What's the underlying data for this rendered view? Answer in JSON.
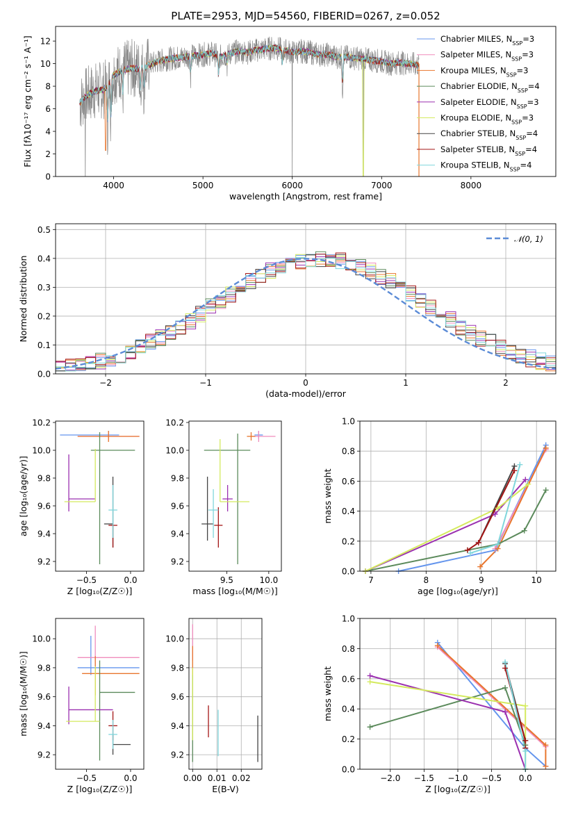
{
  "series": [
    {
      "name": "Chabrier MILES",
      "nssp": "3",
      "color": "#6495ed"
    },
    {
      "name": "Salpeter MILES",
      "nssp": "3",
      "color": "#f08cbc"
    },
    {
      "name": "Kroupa MILES",
      "nssp": "3",
      "color": "#e8762d"
    },
    {
      "name": "Chabrier ELODIE",
      "nssp": "4",
      "color": "#5b8a5b"
    },
    {
      "name": "Salpeter ELODIE",
      "nssp": "3",
      "color": "#9b30b0"
    },
    {
      "name": "Kroupa ELODIE",
      "nssp": "3",
      "color": "#d4ea5e"
    },
    {
      "name": "Chabrier STELIB",
      "nssp": "4",
      "color": "#444444"
    },
    {
      "name": "Salpeter STELIB",
      "nssp": "4",
      "color": "#a31515"
    },
    {
      "name": "Kroupa STELIB",
      "nssp": "4",
      "color": "#7fd6dc"
    }
  ],
  "chart_data": [
    {
      "type": "line",
      "title": "PLATE=2953, MJD=54560, FIBERID=0267, z=0.052",
      "xlabel": "wavelength [Angstrom, rest frame]",
      "ylabel": "Flux [fλ10⁻¹⁷ erg cm⁻² s⁻¹ A⁻¹]",
      "xlim": [
        3350,
        8950
      ],
      "ylim": [
        0,
        13.3
      ],
      "xticks": [
        4000,
        5000,
        6000,
        7000,
        8000
      ],
      "yticks": [
        0,
        2,
        4,
        6,
        8,
        10,
        12
      ],
      "grid": false,
      "legend": "top-right",
      "continuum": {
        "x": [
          3620,
          3700,
          3800,
          3900,
          4000,
          4100,
          4200,
          4300,
          4400,
          4500,
          4600,
          4700,
          4800,
          4900,
          5000,
          5100,
          5200,
          5300,
          5400,
          5500,
          5600,
          5700,
          5800,
          5900,
          6000,
          6100,
          6200,
          6300,
          6400,
          6500,
          6600,
          6700,
          6800,
          6900,
          7000,
          7100,
          7200,
          7300,
          7400
        ],
        "y": [
          6.5,
          7.2,
          7.6,
          7.7,
          9.0,
          9.4,
          9.6,
          9.5,
          9.9,
          10.2,
          10.4,
          10.5,
          10.6,
          10.7,
          10.8,
          10.9,
          10.6,
          10.9,
          11.1,
          11.0,
          11.2,
          11.3,
          11.4,
          11.2,
          11.0,
          11.1,
          11.0,
          10.8,
          10.8,
          10.6,
          10.6,
          10.5,
          10.4,
          10.3,
          10.2,
          10.0,
          10.1,
          10.0,
          9.9
        ]
      }
    },
    {
      "type": "histogram",
      "xlabel": "(data-model)/error",
      "ylabel": "Normed distribution",
      "xlim": [
        -2.5,
        2.5
      ],
      "ylim": [
        0,
        0.52
      ],
      "xticks": [
        -2,
        -1,
        0,
        1,
        2
      ],
      "yticks": [
        0.0,
        0.1,
        0.2,
        0.3,
        0.4,
        0.5
      ],
      "grid": true,
      "legend": "top-right",
      "reference_label": "𝒩(0, 1)",
      "bin_width": 0.1
    },
    {
      "type": "errorbar",
      "xlabel": "Z [log₁₀(Z/Z☉)]",
      "ylabel": "age  [log₁₀(age/yr)]",
      "xlim": [
        -0.85,
        0.15
      ],
      "ylim": [
        9.13,
        10.21
      ],
      "xticks": [
        -0.5,
        0.0
      ],
      "yticks": [
        9.2,
        9.4,
        9.6,
        9.8,
        10.0,
        10.2
      ],
      "grid": false,
      "points": [
        {
          "series": "Chabrier MILES",
          "x": -0.25,
          "xerr": [
            0.55,
            0.12
          ],
          "y": 10.11,
          "yerr": [
            0.03,
            0.03
          ]
        },
        {
          "series": "Salpeter MILES",
          "x": -0.25,
          "xerr": [
            0.35,
            0.35
          ],
          "y": 10.1,
          "yerr": [
            0.03,
            0.03
          ]
        },
        {
          "series": "Kroupa MILES",
          "x": -0.25,
          "xerr": [
            0.35,
            0.35
          ],
          "y": 10.1,
          "yerr": [
            0.04,
            0.04
          ]
        },
        {
          "series": "Chabrier ELODIE",
          "x": -0.35,
          "xerr": [
            0.1,
            0.4
          ],
          "y": 10.0,
          "yerr": [
            0.82,
            0.13
          ]
        },
        {
          "series": "Salpeter ELODIE",
          "x": -0.7,
          "xerr": [
            0.0,
            0.3
          ],
          "y": 9.65,
          "yerr": [
            0.09,
            0.32
          ]
        },
        {
          "series": "Kroupa ELODIE",
          "x": -0.4,
          "xerr": [
            0.35,
            0.0
          ],
          "y": 9.63,
          "yerr": [
            0.0,
            0.38
          ]
        },
        {
          "series": "Chabrier STELIB",
          "x": -0.2,
          "xerr": [
            0.1,
            0.0
          ],
          "y": 9.47,
          "yerr": [
            0.17,
            0.34
          ]
        },
        {
          "series": "Salpeter STELIB",
          "x": -0.2,
          "xerr": [
            0.05,
            0.05
          ],
          "y": 9.46,
          "yerr": [
            0.16,
            0.0
          ]
        },
        {
          "series": "Kroupa STELIB",
          "x": -0.2,
          "xerr": [
            0.05,
            0.05
          ],
          "y": 9.57,
          "yerr": [
            0.2,
            0.18
          ]
        }
      ]
    },
    {
      "type": "errorbar",
      "xlabel": "mass [log₁₀(M/M☉)]",
      "ylabel": "",
      "xlim": [
        9.05,
        10.15
      ],
      "ylim": [
        9.13,
        10.21
      ],
      "xticks": [
        9.5,
        10.0
      ],
      "yticks": [
        9.2,
        9.4,
        9.6,
        9.8,
        10.0,
        10.2
      ],
      "grid": false,
      "points": [
        {
          "series": "Chabrier MILES",
          "x": 9.88,
          "xerr": [
            0.05,
            0.05
          ],
          "y": 10.11,
          "yerr": [
            0.03,
            0.03
          ]
        },
        {
          "series": "Salpeter MILES",
          "x": 9.88,
          "xerr": [
            0.1,
            0.2
          ],
          "y": 10.1,
          "yerr": [
            0.04,
            0.04
          ]
        },
        {
          "series": "Kroupa MILES",
          "x": 9.79,
          "xerr": [
            0.05,
            0.05
          ],
          "y": 10.1,
          "yerr": [
            0.03,
            0.03
          ]
        },
        {
          "series": "Chabrier ELODIE",
          "x": 9.63,
          "xerr": [
            0.4,
            0.15
          ],
          "y": 10.0,
          "yerr": [
            0.82,
            0.12
          ]
        },
        {
          "series": "Salpeter ELODIE",
          "x": 9.51,
          "xerr": [
            0.06,
            0.06
          ],
          "y": 9.65,
          "yerr": [
            0.09,
            0.1
          ]
        },
        {
          "series": "Kroupa ELODIE",
          "x": 9.42,
          "xerr": [
            0.0,
            0.35
          ],
          "y": 9.63,
          "yerr": [
            0.0,
            0.45
          ]
        },
        {
          "series": "Chabrier STELIB",
          "x": 9.27,
          "xerr": [
            0.07,
            0.07
          ],
          "y": 9.47,
          "yerr": [
            0.12,
            0.34
          ]
        },
        {
          "series": "Salpeter STELIB",
          "x": 9.4,
          "xerr": [
            0.05,
            0.05
          ],
          "y": 9.46,
          "yerr": [
            0.16,
            0.13
          ]
        },
        {
          "series": "Kroupa STELIB",
          "x": 9.34,
          "xerr": [
            0.06,
            0.06
          ],
          "y": 9.57,
          "yerr": [
            0.2,
            0.15
          ]
        }
      ]
    },
    {
      "type": "line",
      "xlabel": "age  [log₁₀(age/yr)]",
      "ylabel": "mass weight",
      "xlim": [
        6.8,
        10.35
      ],
      "ylim": [
        0,
        1.0
      ],
      "xticks": [
        7,
        8,
        9,
        10
      ],
      "yticks": [
        0.0,
        0.2,
        0.4,
        0.6,
        0.8,
        1.0
      ],
      "grid": true,
      "lines": [
        {
          "series": "Chabrier MILES",
          "x": [
            7.5,
            9.25,
            10.17
          ],
          "y": [
            0.0,
            0.14,
            0.84
          ]
        },
        {
          "series": "Salpeter MILES",
          "x": [
            9.25,
            10.17
          ],
          "y": [
            0.15,
            0.81
          ]
        },
        {
          "series": "Kroupa MILES",
          "x": [
            8.98,
            9.3,
            10.17
          ],
          "y": [
            0.03,
            0.15,
            0.82
          ]
        },
        {
          "series": "Chabrier ELODIE",
          "x": [
            6.9,
            8.75,
            9.3,
            9.78,
            10.17
          ],
          "y": [
            0.0,
            0.14,
            0.18,
            0.27,
            0.54
          ]
        },
        {
          "series": "Salpeter ELODIE",
          "x": [
            6.9,
            9.25,
            9.8
          ],
          "y": [
            0.0,
            0.38,
            0.61
          ]
        },
        {
          "series": "Kroupa ELODIE",
          "x": [
            6.9,
            9.3,
            9.85
          ],
          "y": [
            0.0,
            0.42,
            0.58
          ]
        },
        {
          "series": "Chabrier STELIB",
          "x": [
            8.95,
            9.6
          ],
          "y": [
            0.19,
            0.7
          ]
        },
        {
          "series": "Salpeter STELIB",
          "x": [
            8.75,
            8.95,
            9.6
          ],
          "y": [
            0.14,
            0.19,
            0.67
          ]
        },
        {
          "series": "Kroupa STELIB",
          "x": [
            8.8,
            9.3,
            9.7
          ],
          "y": [
            0.12,
            0.18,
            0.71
          ]
        }
      ]
    },
    {
      "type": "errorbar",
      "xlabel": "Z [log₁₀(Z/Z☉)]",
      "ylabel": "mass [log₁₀(M/M☉)]",
      "xlim": [
        -0.85,
        0.15
      ],
      "ylim": [
        9.1,
        10.14
      ],
      "xticks": [
        -0.5,
        0.0
      ],
      "yticks": [
        9.2,
        9.4,
        9.6,
        9.8,
        10.0
      ],
      "grid": false,
      "points": [
        {
          "series": "Chabrier MILES",
          "x": -0.45,
          "xerr": [
            0.15,
            0.55
          ],
          "y": 9.8,
          "yerr": [
            0.05,
            0.22
          ]
        },
        {
          "series": "Salpeter MILES",
          "x": -0.4,
          "xerr": [
            0.2,
            0.5
          ],
          "y": 9.87,
          "yerr": [
            0.12,
            0.22
          ]
        },
        {
          "series": "Kroupa MILES",
          "x": -0.4,
          "xerr": [
            0.15,
            0.5
          ],
          "y": 9.76,
          "yerr": [
            0.15,
            0.12
          ]
        },
        {
          "series": "Chabrier ELODIE",
          "x": -0.35,
          "xerr": [
            0.0,
            0.4
          ],
          "y": 9.63,
          "yerr": [
            0.47,
            0.22
          ]
        },
        {
          "series": "Salpeter ELODIE",
          "x": -0.7,
          "xerr": [
            0.0,
            0.5
          ],
          "y": 9.51,
          "yerr": [
            0.1,
            0.16
          ]
        },
        {
          "series": "Kroupa ELODIE",
          "x": -0.4,
          "xerr": [
            0.33,
            0.05
          ],
          "y": 9.43,
          "yerr": [
            0.0,
            0.38
          ]
        },
        {
          "series": "Chabrier STELIB",
          "x": -0.2,
          "xerr": [
            0.0,
            0.2
          ],
          "y": 9.27,
          "yerr": [
            0.07,
            0.07
          ]
        },
        {
          "series": "Salpeter STELIB",
          "x": -0.2,
          "xerr": [
            0.05,
            0.05
          ],
          "y": 9.4,
          "yerr": [
            0.1,
            0.1
          ]
        },
        {
          "series": "Kroupa STELIB",
          "x": -0.2,
          "xerr": [
            0.05,
            0.05
          ],
          "y": 9.34,
          "yerr": [
            0.1,
            0.1
          ]
        }
      ]
    },
    {
      "type": "errorbar",
      "xlabel": "E(B-V)",
      "ylabel": "",
      "xlim": [
        -0.0015,
        0.0285
      ],
      "ylim": [
        9.1,
        10.14
      ],
      "xticks": [
        0.0,
        0.01,
        0.02
      ],
      "yticks": [
        9.2,
        9.4,
        9.6,
        9.8,
        10.0
      ],
      "grid": true,
      "points": [
        {
          "series": "Salpeter MILES",
          "x": 0.0,
          "y": 9.95,
          "yerr": [
            0.1,
            0.15
          ]
        },
        {
          "series": "Kroupa MILES",
          "x": 0.0,
          "y": 9.85,
          "yerr": [
            0.1,
            0.1
          ]
        },
        {
          "series": "Chabrier ELODIE",
          "x": 0.0,
          "y": 9.55,
          "yerr": [
            0.4,
            0.2
          ]
        },
        {
          "series": "Kroupa ELODIE",
          "x": 0.0,
          "y": 9.5,
          "yerr": [
            0.2,
            0.3
          ]
        },
        {
          "series": "Salpeter STELIB",
          "x": 0.0065,
          "y": 9.43,
          "yerr": [
            0.11,
            0.11
          ]
        },
        {
          "series": "Kroupa STELIB",
          "x": 0.0105,
          "y": 9.34,
          "yerr": [
            0.15,
            0.17
          ]
        },
        {
          "series": "Chabrier STELIB",
          "x": 0.0268,
          "y": 9.3,
          "yerr": [
            0.15,
            0.17
          ]
        }
      ]
    },
    {
      "type": "line",
      "xlabel": "Z [log₁₀(Z/Z☉)]",
      "ylabel": "mass weight",
      "xlim": [
        -2.45,
        0.45
      ],
      "ylim": [
        0,
        1.0
      ],
      "xticks": [
        -2.0,
        -1.5,
        -1.0,
        -0.5,
        0.0
      ],
      "yticks": [
        0.0,
        0.2,
        0.4,
        0.6,
        0.8,
        1.0
      ],
      "grid": true,
      "lines": [
        {
          "series": "Chabrier MILES",
          "x": [
            -1.3,
            0.0,
            0.3
          ],
          "y": [
            0.84,
            0.14,
            0.02
          ]
        },
        {
          "series": "Salpeter MILES",
          "x": [
            -1.3,
            0.3
          ],
          "y": [
            0.81,
            0.15
          ]
        },
        {
          "series": "Kroupa MILES",
          "x": [
            -1.3,
            0.3,
            0.3
          ],
          "y": [
            0.82,
            0.16,
            0.02
          ]
        },
        {
          "series": "Chabrier ELODIE",
          "x": [
            -2.3,
            -0.3,
            0.0
          ],
          "y": [
            0.28,
            0.54,
            0.16
          ]
        },
        {
          "series": "Salpeter ELODIE",
          "x": [
            -2.3,
            -0.3,
            0.0
          ],
          "y": [
            0.62,
            0.38,
            0.0
          ]
        },
        {
          "series": "Kroupa ELODIE",
          "x": [
            -2.3,
            0.0,
            0.0
          ],
          "y": [
            0.58,
            0.42,
            0.0
          ]
        },
        {
          "series": "Chabrier STELIB",
          "x": [
            -0.3,
            0.0
          ],
          "y": [
            0.7,
            0.19
          ]
        },
        {
          "series": "Salpeter STELIB",
          "x": [
            -0.3,
            0.0,
            0.0
          ],
          "y": [
            0.67,
            0.19,
            0.14
          ]
        },
        {
          "series": "Kroupa STELIB",
          "x": [
            -0.3,
            0.0,
            0.0
          ],
          "y": [
            0.71,
            0.12,
            0.0
          ]
        }
      ]
    }
  ]
}
